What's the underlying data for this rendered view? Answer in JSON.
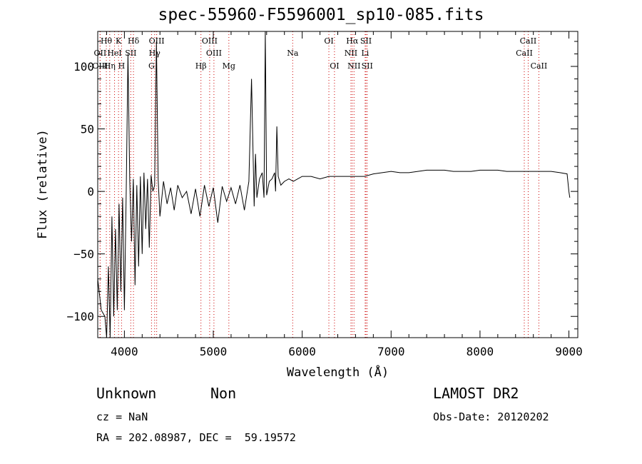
{
  "chart_data": {
    "type": "line",
    "title": "spec-55960-F5596001_sp10-085.fits",
    "xlabel": "Wavelength (Å)",
    "ylabel": "Flux (relative)",
    "xlim": [
      3700,
      9100
    ],
    "ylim": [
      -117,
      128
    ],
    "xticks": [
      4000,
      5000,
      6000,
      7000,
      8000,
      9000
    ],
    "yticks": [
      -100,
      -50,
      0,
      50,
      100
    ],
    "grid": false,
    "series": [
      {
        "x": [
          3700,
          3740,
          3780,
          3800,
          3820,
          3840,
          3860,
          3880,
          3900,
          3920,
          3940,
          3960,
          3980,
          4000,
          4020,
          4040,
          4060,
          4080,
          4100,
          4120,
          4140,
          4160,
          4180,
          4200,
          4220,
          4240,
          4260,
          4280,
          4300,
          4320,
          4340,
          4360,
          4380,
          4400,
          4440,
          4480,
          4520,
          4560,
          4600,
          4650,
          4700,
          4750,
          4800,
          4850,
          4900,
          4950,
          5000,
          5050,
          5100,
          5150,
          5200,
          5250,
          5300,
          5350,
          5400,
          5430,
          5460,
          5475,
          5490,
          5520,
          5550,
          5570,
          5585,
          5600,
          5630,
          5660,
          5690,
          5700,
          5715,
          5730,
          5760,
          5800,
          5850,
          5900,
          5950,
          6000,
          6100,
          6200,
          6300,
          6400,
          6500,
          6600,
          6700,
          6800,
          6900,
          7000,
          7100,
          7200,
          7300,
          7400,
          7500,
          7600,
          7700,
          7800,
          7900,
          8000,
          8100,
          8200,
          8300,
          8400,
          8500,
          8600,
          8700,
          8800,
          8900,
          8980,
          9000,
          9010
        ],
        "y": [
          -70,
          -95,
          -100,
          -118,
          -60,
          -117,
          -20,
          -100,
          -30,
          -95,
          -10,
          -80,
          -5,
          -95,
          -2,
          110,
          8,
          -40,
          10,
          -75,
          5,
          -60,
          12,
          -50,
          15,
          -30,
          10,
          -45,
          13,
          0,
          5,
          120,
          10,
          -20,
          8,
          -10,
          3,
          -15,
          5,
          -5,
          0,
          -18,
          2,
          -20,
          5,
          -12,
          3,
          -25,
          4,
          -8,
          3,
          -10,
          5,
          -15,
          8,
          90,
          -12,
          30,
          -5,
          10,
          15,
          -5,
          130,
          -3,
          8,
          10,
          15,
          0,
          52,
          12,
          5,
          8,
          10,
          8,
          10,
          12,
          12,
          10,
          12,
          12,
          12,
          12,
          12,
          14,
          15,
          16,
          15,
          15,
          16,
          17,
          17,
          17,
          16,
          16,
          16,
          17,
          17,
          17,
          16,
          16,
          16,
          16,
          16,
          16,
          15,
          14,
          0,
          -5
        ]
      }
    ],
    "lines": [
      {
        "label": "Hθ",
        "x": 3797,
        "row": 0,
        "style": "dotted"
      },
      {
        "label": "K",
        "x": 3934,
        "row": 0,
        "style": "dotted"
      },
      {
        "label": "Hδ",
        "x": 4102,
        "row": 0,
        "style": "dotted"
      },
      {
        "label": "OIII",
        "x": 4363,
        "row": 0,
        "style": "dotted"
      },
      {
        "label": "OIII",
        "x": 4959,
        "row": 0,
        "style": "dotted"
      },
      {
        "label": "OI",
        "x": 6300,
        "row": 0,
        "style": "dotted"
      },
      {
        "label": "Hα",
        "x": 6563,
        "row": 0,
        "style": "dotted"
      },
      {
        "label": "SII",
        "x": 6717,
        "row": 0,
        "style": "dotted"
      },
      {
        "label": "CaII",
        "x": 8542,
        "row": 0,
        "style": "dotted"
      },
      {
        "label": "OII",
        "x": 3727,
        "row": 1,
        "style": "dotted"
      },
      {
        "label": "HeI",
        "x": 3889,
        "row": 1,
        "style": "dotted"
      },
      {
        "label": "SII",
        "x": 4072,
        "row": 1,
        "style": "dotted"
      },
      {
        "label": "Hγ",
        "x": 4340,
        "row": 1,
        "style": "dotted"
      },
      {
        "label": "OIII",
        "x": 5007,
        "row": 1,
        "style": "dotted"
      },
      {
        "label": "Na",
        "x": 5893,
        "row": 1,
        "style": "dotted"
      },
      {
        "label": "NII",
        "x": 6548,
        "row": 1,
        "style": "dotted"
      },
      {
        "label": "Li",
        "x": 6708,
        "row": 1,
        "style": "dotted"
      },
      {
        "label": "CaII",
        "x": 8498,
        "row": 1,
        "style": "dotted"
      },
      {
        "label": "OIII",
        "x": 3727,
        "row": 2,
        "style": "dotted"
      },
      {
        "label": "Hη",
        "x": 3835,
        "row": 2,
        "style": "dotted"
      },
      {
        "label": "H",
        "x": 3968,
        "row": 2,
        "style": "dotted"
      },
      {
        "label": "G",
        "x": 4305,
        "row": 2,
        "style": "dotted"
      },
      {
        "label": "Hβ",
        "x": 4861,
        "row": 2,
        "style": "dotted"
      },
      {
        "label": "Mg",
        "x": 5175,
        "row": 2,
        "style": "dotted"
      },
      {
        "label": "OI",
        "x": 6363,
        "row": 2,
        "style": "dotted"
      },
      {
        "label": "NII",
        "x": 6583,
        "row": 2,
        "style": "dotted"
      },
      {
        "label": "SII",
        "x": 6731,
        "row": 2,
        "style": "dotted"
      },
      {
        "label": "CaII",
        "x": 8662,
        "row": 2,
        "style": "dotted"
      }
    ]
  },
  "info": {
    "class": "Unknown",
    "subclass": "Non",
    "survey": "LAMOST DR2",
    "cz": "cz = NaN",
    "obs_date": "Obs-Date: 20120202",
    "coords": "RA = 202.08987, DEC =  59.19572"
  },
  "colors": {
    "axis": "#000000",
    "spectrum": "#000000",
    "line_marker": "#cc0000"
  }
}
